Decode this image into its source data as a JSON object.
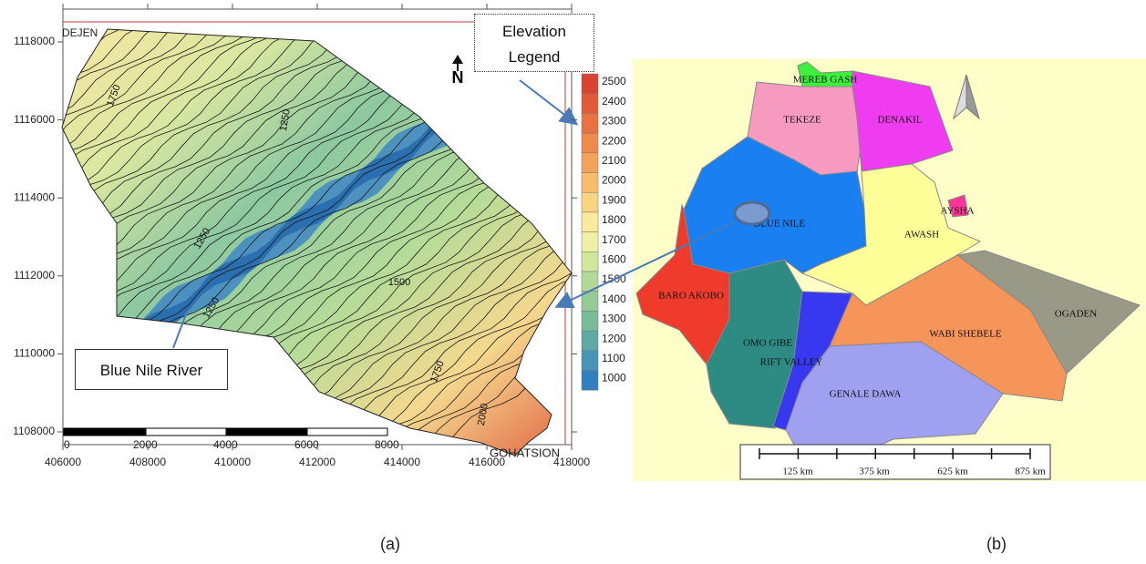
{
  "panel_a": {
    "caption": "(a)",
    "x_ticks": [
      406000,
      408000,
      410000,
      412000,
      414000,
      416000,
      418000
    ],
    "y_ticks": [
      1108000,
      1110000,
      1112000,
      1114000,
      1116000,
      1118000
    ],
    "places": [
      "DEJEN",
      "GOHATSION"
    ],
    "contour_labels": [
      "1750",
      "1250",
      "1250",
      "1500",
      "1250",
      "1750",
      "2000"
    ],
    "scale_labels": [
      0,
      2000,
      4000,
      6000,
      8000
    ],
    "north": "N",
    "legend_title": "Elevation Legend",
    "legend_labels": [
      2500,
      2400,
      2300,
      2200,
      2100,
      2000,
      1900,
      1800,
      1700,
      1600,
      1500,
      1400,
      1300,
      1200,
      1100,
      1000
    ],
    "river_callout": "Blue Nile River"
  },
  "panel_b": {
    "caption": "(b)",
    "basins": [
      "MEREB GASH",
      "TEKEZE",
      "DENAKIL",
      "BLUE NILE",
      "AYSHA",
      "AWASH",
      "BARO AKOBO",
      "OGADEN",
      "OMO GIBE",
      "WABI SHEBELE",
      "RIFT VALLEY",
      "GENALE DAWA"
    ],
    "scale_labels": [
      "125 km",
      "375 km",
      "625 km",
      "875 km"
    ]
  }
}
